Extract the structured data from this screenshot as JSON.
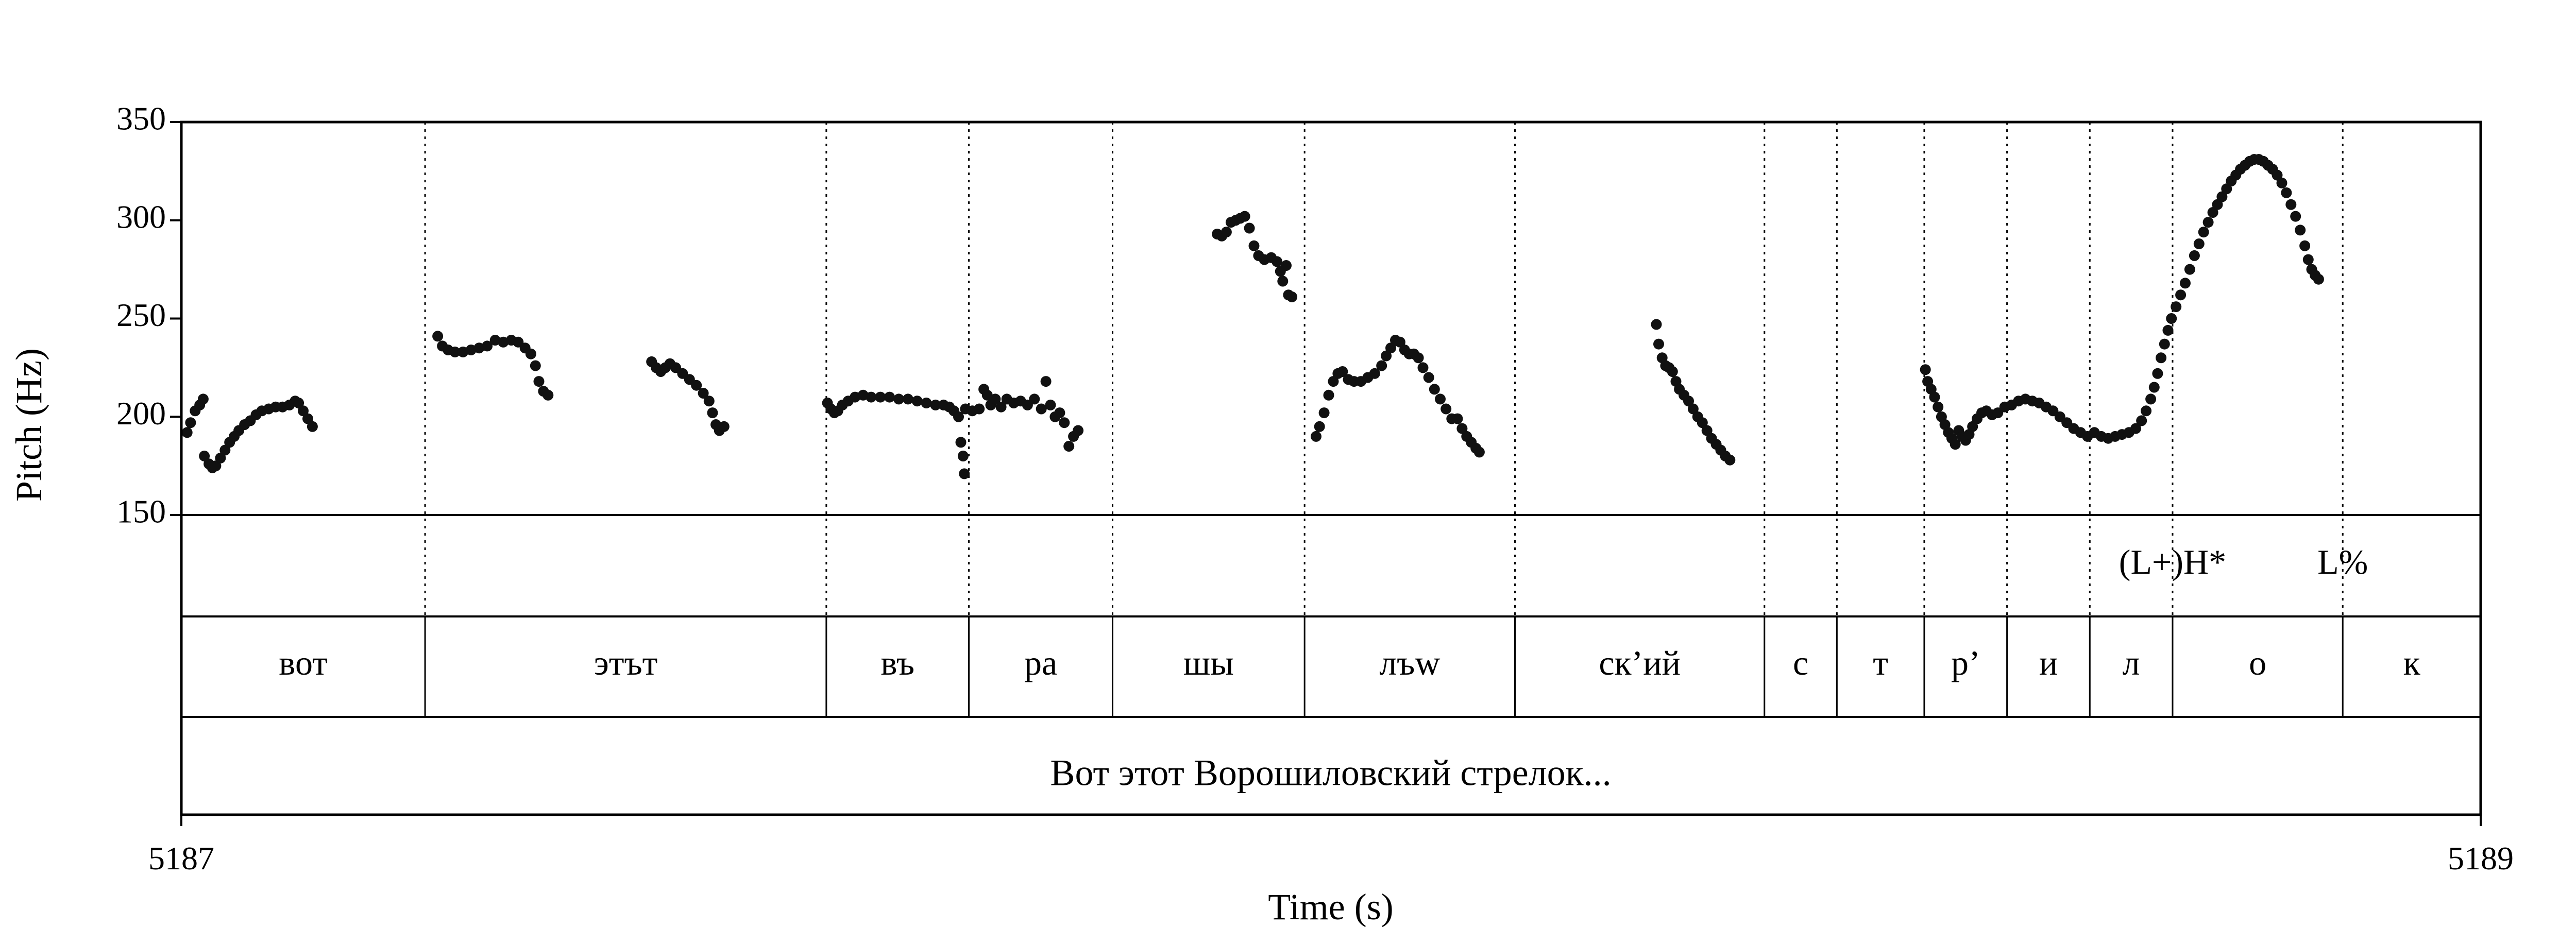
{
  "chart_data": {
    "type": "scatter",
    "xlabel": "Time (s)",
    "ylabel": "Pitch (Hz)",
    "xlim": [
      5187,
      5189
    ],
    "ylim": [
      150,
      350
    ],
    "x_tick_labels": [
      "5187",
      "5189"
    ],
    "y_ticks": [
      150,
      200,
      250,
      300,
      350
    ],
    "y_tick_labels": [
      "150",
      "200",
      "250",
      "300",
      "350"
    ],
    "grid": false,
    "segments": [
      {
        "label": "вот",
        "start": 5187.0,
        "end": 5187.212
      },
      {
        "label": "этът",
        "start": 5187.212,
        "end": 5187.561
      },
      {
        "label": "въ",
        "start": 5187.561,
        "end": 5187.685
      },
      {
        "label": "ра",
        "start": 5187.685,
        "end": 5187.81
      },
      {
        "label": "шы",
        "start": 5187.81,
        "end": 5187.977
      },
      {
        "label": "лъw",
        "start": 5187.977,
        "end": 5188.16
      },
      {
        "label": "ск’ий",
        "start": 5188.16,
        "end": 5188.377
      },
      {
        "label": "с",
        "start": 5188.377,
        "end": 5188.44
      },
      {
        "label": "т",
        "start": 5188.44,
        "end": 5188.516
      },
      {
        "label": "р’",
        "start": 5188.516,
        "end": 5188.588
      },
      {
        "label": "и",
        "start": 5188.588,
        "end": 5188.66
      },
      {
        "label": "л",
        "start": 5188.66,
        "end": 5188.732
      },
      {
        "label": "о",
        "start": 5188.732,
        "end": 5188.88
      },
      {
        "label": "к",
        "start": 5188.88,
        "end": 5189.0
      }
    ],
    "tones": [
      {
        "label": "(L+)H*",
        "time": 5188.732
      },
      {
        "label": "L%",
        "time": 5188.88
      }
    ],
    "phrase": "Вот этот Ворошиловский стрелок...",
    "series": [
      {
        "values": [
          [
            5187.005,
            192
          ],
          [
            5187.008,
            197
          ],
          [
            5187.012,
            203
          ],
          [
            5187.016,
            206
          ],
          [
            5187.019,
            209
          ],
          [
            5187.02,
            180
          ],
          [
            5187.024,
            176
          ],
          [
            5187.027,
            174
          ],
          [
            5187.03,
            175
          ],
          [
            5187.034,
            179
          ],
          [
            5187.038,
            183
          ],
          [
            5187.042,
            187
          ],
          [
            5187.046,
            190
          ],
          [
            5187.05,
            193
          ],
          [
            5187.055,
            196
          ],
          [
            5187.06,
            198
          ],
          [
            5187.065,
            201
          ],
          [
            5187.07,
            203
          ],
          [
            5187.076,
            204
          ],
          [
            5187.082,
            205
          ],
          [
            5187.088,
            205
          ],
          [
            5187.094,
            206
          ],
          [
            5187.099,
            208
          ],
          [
            5187.102,
            207
          ],
          [
            5187.106,
            203
          ],
          [
            5187.11,
            199
          ],
          [
            5187.114,
            195
          ],
          [
            5187.223,
            241
          ],
          [
            5187.227,
            236
          ],
          [
            5187.232,
            234
          ],
          [
            5187.238,
            233
          ],
          [
            5187.245,
            233
          ],
          [
            5187.252,
            234
          ],
          [
            5187.259,
            235
          ],
          [
            5187.266,
            236
          ],
          [
            5187.273,
            239
          ],
          [
            5187.28,
            238
          ],
          [
            5187.287,
            239
          ],
          [
            5187.293,
            238
          ],
          [
            5187.299,
            235
          ],
          [
            5187.304,
            232
          ],
          [
            5187.308,
            226
          ],
          [
            5187.311,
            218
          ],
          [
            5187.315,
            213
          ],
          [
            5187.319,
            211
          ],
          [
            5187.409,
            228
          ],
          [
            5187.413,
            225
          ],
          [
            5187.417,
            223
          ],
          [
            5187.421,
            225
          ],
          [
            5187.425,
            227
          ],
          [
            5187.43,
            225
          ],
          [
            5187.436,
            222
          ],
          [
            5187.442,
            219
          ],
          [
            5187.448,
            216
          ],
          [
            5187.454,
            212
          ],
          [
            5187.459,
            208
          ],
          [
            5187.462,
            202
          ],
          [
            5187.465,
            196
          ],
          [
            5187.468,
            193
          ],
          [
            5187.472,
            195
          ],
          [
            5187.562,
            207
          ],
          [
            5187.565,
            204
          ],
          [
            5187.568,
            202
          ],
          [
            5187.571,
            203
          ],
          [
            5187.575,
            206
          ],
          [
            5187.58,
            208
          ],
          [
            5187.586,
            210
          ],
          [
            5187.593,
            211
          ],
          [
            5187.6,
            210
          ],
          [
            5187.608,
            210
          ],
          [
            5187.616,
            210
          ],
          [
            5187.624,
            209
          ],
          [
            5187.632,
            209
          ],
          [
            5187.64,
            208
          ],
          [
            5187.648,
            207
          ],
          [
            5187.656,
            206
          ],
          [
            5187.663,
            206
          ],
          [
            5187.668,
            205
          ],
          [
            5187.672,
            203
          ],
          [
            5187.676,
            200
          ],
          [
            5187.678,
            187
          ],
          [
            5187.68,
            180
          ],
          [
            5187.681,
            171
          ],
          [
            5187.682,
            204
          ],
          [
            5187.688,
            203
          ],
          [
            5187.694,
            204
          ],
          [
            5187.698,
            214
          ],
          [
            5187.701,
            211
          ],
          [
            5187.704,
            206
          ],
          [
            5187.708,
            209
          ],
          [
            5187.713,
            205
          ],
          [
            5187.718,
            209
          ],
          [
            5187.724,
            207
          ],
          [
            5187.73,
            208
          ],
          [
            5187.736,
            206
          ],
          [
            5187.742,
            209
          ],
          [
            5187.748,
            204
          ],
          [
            5187.752,
            218
          ],
          [
            5187.756,
            206
          ],
          [
            5187.76,
            200
          ],
          [
            5187.764,
            202
          ],
          [
            5187.768,
            197
          ],
          [
            5187.772,
            185
          ],
          [
            5187.776,
            190
          ],
          [
            5187.78,
            193
          ],
          [
            5187.901,
            293
          ],
          [
            5187.905,
            292
          ],
          [
            5187.909,
            294
          ],
          [
            5187.913,
            299
          ],
          [
            5187.917,
            300
          ],
          [
            5187.921,
            301
          ],
          [
            5187.925,
            302
          ],
          [
            5187.929,
            296
          ],
          [
            5187.933,
            287
          ],
          [
            5187.937,
            282
          ],
          [
            5187.942,
            280
          ],
          [
            5187.948,
            281
          ],
          [
            5187.953,
            279
          ],
          [
            5187.956,
            274
          ],
          [
            5187.958,
            269
          ],
          [
            5187.961,
            277
          ],
          [
            5187.963,
            262
          ],
          [
            5187.966,
            261
          ],
          [
            5187.987,
            190
          ],
          [
            5187.99,
            195
          ],
          [
            5187.994,
            202
          ],
          [
            5187.998,
            211
          ],
          [
            5188.002,
            218
          ],
          [
            5188.006,
            222
          ],
          [
            5188.01,
            223
          ],
          [
            5188.015,
            219
          ],
          [
            5188.02,
            218
          ],
          [
            5188.026,
            218
          ],
          [
            5188.032,
            220
          ],
          [
            5188.038,
            222
          ],
          [
            5188.044,
            226
          ],
          [
            5188.048,
            231
          ],
          [
            5188.052,
            235
          ],
          [
            5188.056,
            239
          ],
          [
            5188.06,
            238
          ],
          [
            5188.064,
            234
          ],
          [
            5188.068,
            232
          ],
          [
            5188.072,
            232
          ],
          [
            5188.076,
            230
          ],
          [
            5188.08,
            225
          ],
          [
            5188.085,
            220
          ],
          [
            5188.09,
            214
          ],
          [
            5188.095,
            209
          ],
          [
            5188.1,
            204
          ],
          [
            5188.105,
            199
          ],
          [
            5188.11,
            199
          ],
          [
            5188.114,
            194
          ],
          [
            5188.118,
            190
          ],
          [
            5188.122,
            187
          ],
          [
            5188.126,
            184
          ],
          [
            5188.129,
            182
          ],
          [
            5188.283,
            247
          ],
          [
            5188.285,
            237
          ],
          [
            5188.288,
            230
          ],
          [
            5188.291,
            226
          ],
          [
            5188.294,
            225
          ],
          [
            5188.297,
            223
          ],
          [
            5188.3,
            218
          ],
          [
            5188.303,
            214
          ],
          [
            5188.307,
            211
          ],
          [
            5188.311,
            208
          ],
          [
            5188.315,
            204
          ],
          [
            5188.319,
            200
          ],
          [
            5188.323,
            197
          ],
          [
            5188.327,
            193
          ],
          [
            5188.331,
            189
          ],
          [
            5188.335,
            186
          ],
          [
            5188.339,
            183
          ],
          [
            5188.343,
            180
          ],
          [
            5188.347,
            178
          ],
          [
            5188.517,
            224
          ],
          [
            5188.519,
            218
          ],
          [
            5188.522,
            214
          ],
          [
            5188.525,
            210
          ],
          [
            5188.528,
            205
          ],
          [
            5188.531,
            200
          ],
          [
            5188.534,
            196
          ],
          [
            5188.537,
            192
          ],
          [
            5188.54,
            189
          ],
          [
            5188.543,
            186
          ],
          [
            5188.546,
            193
          ],
          [
            5188.549,
            190
          ],
          [
            5188.552,
            188
          ],
          [
            5188.555,
            191
          ],
          [
            5188.558,
            195
          ],
          [
            5188.562,
            199
          ],
          [
            5188.566,
            202
          ],
          [
            5188.57,
            203
          ],
          [
            5188.575,
            201
          ],
          [
            5188.58,
            202
          ],
          [
            5188.586,
            205
          ],
          [
            5188.592,
            206
          ],
          [
            5188.598,
            208
          ],
          [
            5188.604,
            209
          ],
          [
            5188.61,
            208
          ],
          [
            5188.616,
            207
          ],
          [
            5188.622,
            205
          ],
          [
            5188.628,
            203
          ],
          [
            5188.634,
            200
          ],
          [
            5188.64,
            197
          ],
          [
            5188.646,
            194
          ],
          [
            5188.652,
            192
          ],
          [
            5188.658,
            190
          ],
          [
            5188.664,
            192
          ],
          [
            5188.67,
            190
          ],
          [
            5188.676,
            189
          ],
          [
            5188.682,
            190
          ],
          [
            5188.688,
            191
          ],
          [
            5188.694,
            192
          ],
          [
            5188.7,
            194
          ],
          [
            5188.705,
            198
          ],
          [
            5188.709,
            203
          ],
          [
            5188.713,
            209
          ],
          [
            5188.716,
            215
          ],
          [
            5188.719,
            222
          ],
          [
            5188.722,
            230
          ],
          [
            5188.725,
            237
          ],
          [
            5188.728,
            244
          ],
          [
            5188.731,
            250
          ],
          [
            5188.735,
            256
          ],
          [
            5188.739,
            262
          ],
          [
            5188.743,
            268
          ],
          [
            5188.747,
            275
          ],
          [
            5188.751,
            282
          ],
          [
            5188.755,
            288
          ],
          [
            5188.759,
            294
          ],
          [
            5188.763,
            299
          ],
          [
            5188.767,
            304
          ],
          [
            5188.771,
            308
          ],
          [
            5188.775,
            312
          ],
          [
            5188.779,
            316
          ],
          [
            5188.783,
            320
          ],
          [
            5188.787,
            323
          ],
          [
            5188.791,
            326
          ],
          [
            5188.795,
            328
          ],
          [
            5188.799,
            330
          ],
          [
            5188.803,
            331
          ],
          [
            5188.807,
            331
          ],
          [
            5188.811,
            330
          ],
          [
            5188.815,
            328
          ],
          [
            5188.819,
            326
          ],
          [
            5188.823,
            323
          ],
          [
            5188.827,
            319
          ],
          [
            5188.831,
            314
          ],
          [
            5188.835,
            308
          ],
          [
            5188.839,
            302
          ],
          [
            5188.843,
            295
          ],
          [
            5188.847,
            287
          ],
          [
            5188.85,
            280
          ],
          [
            5188.853,
            275
          ],
          [
            5188.856,
            272
          ],
          [
            5188.859,
            270
          ]
        ]
      }
    ]
  }
}
